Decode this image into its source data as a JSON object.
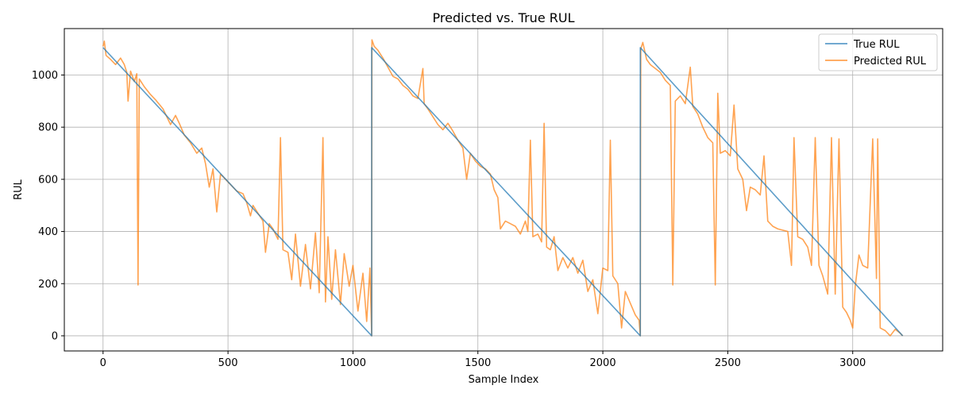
{
  "chart_data": {
    "type": "line",
    "title": "Predicted vs. True RUL",
    "xlabel": "Sample Index",
    "ylabel": "RUL",
    "xlim": [
      -155,
      3360
    ],
    "ylim": [
      -58,
      1178
    ],
    "xticks": [
      0,
      500,
      1000,
      1500,
      2000,
      2500,
      3000
    ],
    "yticks": [
      0,
      200,
      400,
      600,
      800,
      1000
    ],
    "grid": true,
    "legend_position": "top-right",
    "series": [
      {
        "name": "True RUL",
        "color": "#1f77b4",
        "points": [
          [
            0,
            1105
          ],
          [
            1075,
            0
          ],
          [
            1075,
            1105
          ],
          [
            2150,
            0
          ],
          [
            2150,
            1105
          ],
          [
            3200,
            0
          ]
        ]
      },
      {
        "name": "Predicted RUL",
        "color": "#ff7f0e",
        "points": [
          [
            0,
            1110
          ],
          [
            5,
            1130
          ],
          [
            12,
            1075
          ],
          [
            30,
            1060
          ],
          [
            50,
            1040
          ],
          [
            70,
            1065
          ],
          [
            85,
            1040
          ],
          [
            95,
            1010
          ],
          [
            100,
            900
          ],
          [
            110,
            1015
          ],
          [
            125,
            975
          ],
          [
            135,
            1005
          ],
          [
            140,
            195
          ],
          [
            145,
            985
          ],
          [
            165,
            955
          ],
          [
            190,
            925
          ],
          [
            210,
            905
          ],
          [
            240,
            870
          ],
          [
            270,
            810
          ],
          [
            290,
            845
          ],
          [
            305,
            815
          ],
          [
            325,
            770
          ],
          [
            350,
            740
          ],
          [
            375,
            700
          ],
          [
            395,
            720
          ],
          [
            410,
            660
          ],
          [
            425,
            570
          ],
          [
            440,
            640
          ],
          [
            455,
            475
          ],
          [
            470,
            620
          ],
          [
            490,
            600
          ],
          [
            510,
            580
          ],
          [
            535,
            555
          ],
          [
            560,
            545
          ],
          [
            575,
            510
          ],
          [
            590,
            460
          ],
          [
            600,
            500
          ],
          [
            620,
            470
          ],
          [
            640,
            440
          ],
          [
            650,
            320
          ],
          [
            665,
            430
          ],
          [
            680,
            410
          ],
          [
            700,
            370
          ],
          [
            710,
            760
          ],
          [
            720,
            330
          ],
          [
            740,
            320
          ],
          [
            755,
            215
          ],
          [
            770,
            390
          ],
          [
            790,
            190
          ],
          [
            810,
            350
          ],
          [
            830,
            180
          ],
          [
            850,
            395
          ],
          [
            865,
            165
          ],
          [
            880,
            760
          ],
          [
            890,
            130
          ],
          [
            900,
            380
          ],
          [
            915,
            140
          ],
          [
            930,
            330
          ],
          [
            950,
            120
          ],
          [
            965,
            315
          ],
          [
            985,
            190
          ],
          [
            1000,
            270
          ],
          [
            1020,
            95
          ],
          [
            1040,
            240
          ],
          [
            1055,
            55
          ],
          [
            1068,
            260
          ],
          [
            1075,
            0
          ],
          [
            1076,
            1135
          ],
          [
            1085,
            1110
          ],
          [
            1100,
            1095
          ],
          [
            1120,
            1065
          ],
          [
            1140,
            1030
          ],
          [
            1160,
            995
          ],
          [
            1180,
            985
          ],
          [
            1200,
            960
          ],
          [
            1220,
            945
          ],
          [
            1240,
            920
          ],
          [
            1260,
            910
          ],
          [
            1280,
            1025
          ],
          [
            1285,
            890
          ],
          [
            1300,
            870
          ],
          [
            1320,
            840
          ],
          [
            1340,
            810
          ],
          [
            1360,
            790
          ],
          [
            1380,
            815
          ],
          [
            1400,
            785
          ],
          [
            1420,
            750
          ],
          [
            1440,
            720
          ],
          [
            1455,
            600
          ],
          [
            1470,
            700
          ],
          [
            1490,
            670
          ],
          [
            1510,
            650
          ],
          [
            1530,
            640
          ],
          [
            1550,
            620
          ],
          [
            1565,
            560
          ],
          [
            1580,
            530
          ],
          [
            1590,
            410
          ],
          [
            1610,
            440
          ],
          [
            1630,
            430
          ],
          [
            1650,
            420
          ],
          [
            1670,
            390
          ],
          [
            1690,
            440
          ],
          [
            1700,
            400
          ],
          [
            1710,
            750
          ],
          [
            1720,
            380
          ],
          [
            1740,
            390
          ],
          [
            1755,
            360
          ],
          [
            1765,
            815
          ],
          [
            1775,
            340
          ],
          [
            1790,
            330
          ],
          [
            1805,
            380
          ],
          [
            1820,
            250
          ],
          [
            1840,
            300
          ],
          [
            1860,
            260
          ],
          [
            1880,
            300
          ],
          [
            1900,
            240
          ],
          [
            1920,
            290
          ],
          [
            1940,
            170
          ],
          [
            1960,
            215
          ],
          [
            1980,
            85
          ],
          [
            2000,
            260
          ],
          [
            2020,
            250
          ],
          [
            2030,
            750
          ],
          [
            2040,
            230
          ],
          [
            2060,
            200
          ],
          [
            2075,
            30
          ],
          [
            2090,
            170
          ],
          [
            2110,
            125
          ],
          [
            2130,
            80
          ],
          [
            2145,
            60
          ],
          [
            2150,
            0
          ],
          [
            2151,
            755
          ],
          [
            2152,
            1100
          ],
          [
            2160,
            1125
          ],
          [
            2175,
            1060
          ],
          [
            2190,
            1040
          ],
          [
            2210,
            1025
          ],
          [
            2230,
            1010
          ],
          [
            2250,
            980
          ],
          [
            2270,
            960
          ],
          [
            2280,
            195
          ],
          [
            2290,
            900
          ],
          [
            2310,
            920
          ],
          [
            2330,
            890
          ],
          [
            2350,
            1030
          ],
          [
            2360,
            880
          ],
          [
            2380,
            850
          ],
          [
            2400,
            800
          ],
          [
            2420,
            760
          ],
          [
            2440,
            740
          ],
          [
            2450,
            195
          ],
          [
            2460,
            930
          ],
          [
            2470,
            700
          ],
          [
            2490,
            710
          ],
          [
            2510,
            690
          ],
          [
            2525,
            885
          ],
          [
            2540,
            640
          ],
          [
            2560,
            600
          ],
          [
            2575,
            480
          ],
          [
            2590,
            570
          ],
          [
            2610,
            560
          ],
          [
            2630,
            540
          ],
          [
            2645,
            690
          ],
          [
            2660,
            440
          ],
          [
            2680,
            420
          ],
          [
            2700,
            410
          ],
          [
            2720,
            405
          ],
          [
            2740,
            400
          ],
          [
            2755,
            270
          ],
          [
            2765,
            760
          ],
          [
            2780,
            380
          ],
          [
            2800,
            370
          ],
          [
            2820,
            340
          ],
          [
            2835,
            270
          ],
          [
            2850,
            760
          ],
          [
            2865,
            270
          ],
          [
            2880,
            230
          ],
          [
            2900,
            160
          ],
          [
            2915,
            760
          ],
          [
            2930,
            160
          ],
          [
            2945,
            755
          ],
          [
            2960,
            110
          ],
          [
            2975,
            90
          ],
          [
            2990,
            60
          ],
          [
            3000,
            30
          ],
          [
            3010,
            190
          ],
          [
            3025,
            310
          ],
          [
            3040,
            270
          ],
          [
            3060,
            260
          ],
          [
            3080,
            755
          ],
          [
            3095,
            220
          ],
          [
            3100,
            755
          ],
          [
            3110,
            30
          ],
          [
            3130,
            20
          ],
          [
            3150,
            0
          ],
          [
            3170,
            25
          ],
          [
            3190,
            10
          ],
          [
            3200,
            0
          ]
        ]
      }
    ]
  }
}
